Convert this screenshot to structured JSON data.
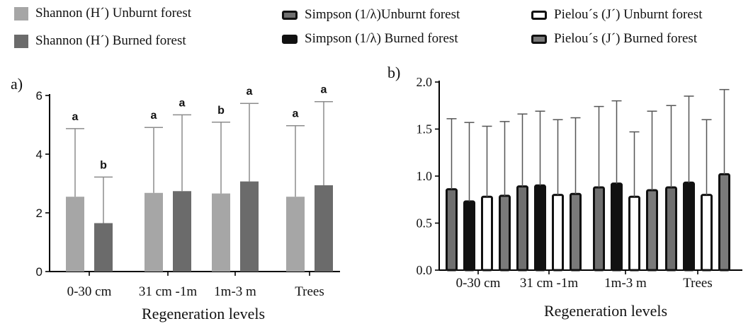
{
  "legend": [
    {
      "label": "Shannon (H´) Unburnt forest",
      "swatch": "sw-sh-un"
    },
    {
      "label": "Shannon (H´) Burned forest",
      "swatch": "sw-sh-bu"
    },
    {
      "label": "Simpson (1/λ)Unburnt forest",
      "swatch": "sw-si-un"
    },
    {
      "label": "Simpson (1/λ) Burned forest",
      "swatch": "sw-si-bu"
    },
    {
      "label": "Pielou´s (J´) Unburnt forest",
      "swatch": "sw-pi-un"
    },
    {
      "label": "Pielou´s (J´) Burned forest",
      "swatch": "sw-pi-bu"
    }
  ],
  "chart_data": [
    {
      "type": "bar",
      "panel_label": "a)",
      "xlabel": "Regeneration levels",
      "ylabel": "",
      "ylim": [
        0,
        6
      ],
      "yticks": [
        "0",
        "2",
        "4",
        "6"
      ],
      "categories": [
        "0-30 cm",
        "31 cm -1m",
        "1m-3 m",
        "Trees"
      ],
      "series": [
        {
          "name": "Shannon (H´) Unburnt forest",
          "color": "#a6a6a6",
          "values": [
            2.55,
            2.68,
            2.66,
            2.55
          ],
          "error_upper": [
            4.87,
            4.91,
            5.09,
            4.97
          ],
          "significance": [
            "a",
            "a",
            "b",
            "a"
          ]
        },
        {
          "name": "Shannon (H´) Burned forest",
          "color": "#6b6b6b",
          "values": [
            1.65,
            2.74,
            3.07,
            2.94
          ],
          "error_upper": [
            3.22,
            5.34,
            5.73,
            5.79
          ],
          "significance": [
            "b",
            "a",
            "a",
            "a"
          ]
        }
      ]
    },
    {
      "type": "bar",
      "panel_label": "b)",
      "xlabel": "Regeneration levels",
      "ylabel": "",
      "ylim": [
        0,
        2.0
      ],
      "yticks": [
        "0.0",
        "0.5",
        "1.0",
        "1.5",
        "2.0"
      ],
      "categories": [
        "0-30 cm",
        "31 cm -1m",
        "1m-3 m",
        "Trees"
      ],
      "series": [
        {
          "name": "Simpson (1/λ)Unburnt forest",
          "color": "#6f6f6f",
          "values": [
            0.86,
            0.89,
            0.88,
            0.88
          ],
          "error_upper": [
            1.61,
            1.66,
            1.74,
            1.75
          ]
        },
        {
          "name": "Simpson (1/λ) Burned forest",
          "color": "#111111",
          "values": [
            0.73,
            0.9,
            0.92,
            0.93
          ],
          "error_upper": [
            1.57,
            1.69,
            1.8,
            1.85
          ]
        },
        {
          "name": "Pielou´s (J´) Unburnt forest",
          "color": "#ffffff",
          "values": [
            0.78,
            0.8,
            0.78,
            0.8
          ],
          "error_upper": [
            1.53,
            1.6,
            1.47,
            1.6
          ]
        },
        {
          "name": "Pielou´s (J´) Burned forest",
          "color": "#7a7a7a",
          "values": [
            0.79,
            0.81,
            0.85,
            1.02
          ],
          "error_upper": [
            1.58,
            1.62,
            1.69,
            1.92
          ]
        }
      ]
    }
  ]
}
